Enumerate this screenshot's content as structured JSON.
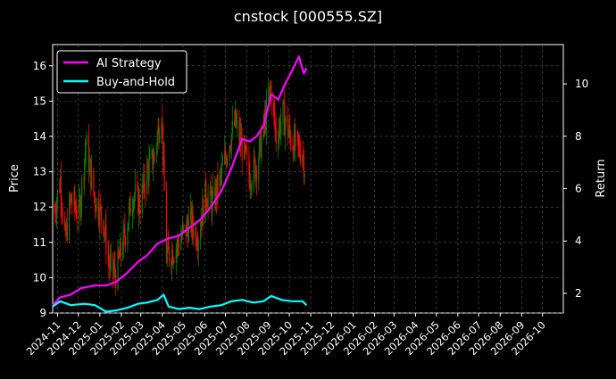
{
  "chart_data": {
    "type": "line",
    "title": "cnstock [000555.SZ]",
    "ylabel_left": "Price",
    "ylabel_right": "Return",
    "ylim_left": [
      9,
      16.6
    ],
    "ylim_right": [
      1.25,
      11.5
    ],
    "yticks_left": [
      "9",
      "10",
      "11",
      "12",
      "13",
      "14",
      "15",
      "16"
    ],
    "yticks_right": [
      "2",
      "4",
      "6",
      "8",
      "10"
    ],
    "x_range": [
      "2024-10-25",
      "2026-10-31"
    ],
    "xticks": [
      "2024-11",
      "2024-12",
      "2025-01",
      "2025-02",
      "2025-03",
      "2025-04",
      "2025-05",
      "2025-06",
      "2025-07",
      "2025-08",
      "2025-09",
      "2025-10",
      "2025-11",
      "2025-12",
      "2026-01",
      "2026-02",
      "2026-03",
      "2026-04",
      "2026-05",
      "2026-06",
      "2026-07",
      "2026-08",
      "2026-09",
      "2026-10"
    ],
    "grid": true,
    "legend_position": "top-left",
    "price_candles_approx": {
      "description_points": [
        {
          "x": "2024-10-28",
          "close": 11.9
        },
        {
          "x": "2024-11-05",
          "close": 12.8
        },
        {
          "x": "2024-11-12",
          "close": 11.0
        },
        {
          "x": "2024-11-20",
          "close": 12.2
        },
        {
          "x": "2024-12-02",
          "close": 11.8
        },
        {
          "x": "2024-12-12",
          "close": 13.8
        },
        {
          "x": "2024-12-24",
          "close": 12.3
        },
        {
          "x": "2025-01-06",
          "close": 11.6
        },
        {
          "x": "2025-01-15",
          "close": 10.3
        },
        {
          "x": "2025-01-24",
          "close": 10.1
        },
        {
          "x": "2025-02-07",
          "close": 11.3
        },
        {
          "x": "2025-02-18",
          "close": 12.4
        },
        {
          "x": "2025-02-28",
          "close": 12.1
        },
        {
          "x": "2025-03-10",
          "close": 13.0
        },
        {
          "x": "2025-03-20",
          "close": 13.4
        },
        {
          "x": "2025-03-31",
          "close": 14.8
        },
        {
          "x": "2025-04-07",
          "close": 10.6
        },
        {
          "x": "2025-04-18",
          "close": 10.8
        },
        {
          "x": "2025-04-30",
          "close": 11.2
        },
        {
          "x": "2025-05-12",
          "close": 11.6
        },
        {
          "x": "2025-05-22",
          "close": 11.2
        },
        {
          "x": "2025-06-03",
          "close": 12.4
        },
        {
          "x": "2025-06-12",
          "close": 12.1
        },
        {
          "x": "2025-06-24",
          "close": 12.8
        },
        {
          "x": "2025-07-03",
          "close": 13.6
        },
        {
          "x": "2025-07-15",
          "close": 14.4
        },
        {
          "x": "2025-07-25",
          "close": 13.7
        },
        {
          "x": "2025-08-05",
          "close": 12.9
        },
        {
          "x": "2025-08-15",
          "close": 13.2
        },
        {
          "x": "2025-08-25",
          "close": 14.2
        },
        {
          "x": "2025-09-04",
          "close": 15.4
        },
        {
          "x": "2025-09-12",
          "close": 14.0
        },
        {
          "x": "2025-09-22",
          "close": 14.6
        },
        {
          "x": "2025-09-30",
          "close": 14.1
        },
        {
          "x": "2025-10-10",
          "close": 13.7
        },
        {
          "x": "2025-10-20",
          "close": 13.6
        },
        {
          "x": "2025-10-24",
          "close": 13.0
        }
      ]
    },
    "series": [
      {
        "name": "AI Strategy",
        "color": "#ff00ff",
        "axis": "right",
        "points": [
          {
            "x": "2024-10-25",
            "y": 1.55
          },
          {
            "x": "2024-11-05",
            "y": 1.85
          },
          {
            "x": "2024-11-20",
            "y": 1.95
          },
          {
            "x": "2024-12-05",
            "y": 2.2
          },
          {
            "x": "2024-12-25",
            "y": 2.3
          },
          {
            "x": "2025-01-10",
            "y": 2.3
          },
          {
            "x": "2025-01-25",
            "y": 2.45
          },
          {
            "x": "2025-02-10",
            "y": 2.8
          },
          {
            "x": "2025-02-25",
            "y": 3.2
          },
          {
            "x": "2025-03-10",
            "y": 3.45
          },
          {
            "x": "2025-03-25",
            "y": 3.9
          },
          {
            "x": "2025-04-10",
            "y": 4.1
          },
          {
            "x": "2025-04-25",
            "y": 4.2
          },
          {
            "x": "2025-05-10",
            "y": 4.5
          },
          {
            "x": "2025-05-25",
            "y": 4.8
          },
          {
            "x": "2025-06-10",
            "y": 5.3
          },
          {
            "x": "2025-06-25",
            "y": 5.9
          },
          {
            "x": "2025-07-10",
            "y": 6.8
          },
          {
            "x": "2025-07-25",
            "y": 7.9
          },
          {
            "x": "2025-08-05",
            "y": 7.8
          },
          {
            "x": "2025-08-15",
            "y": 8.0
          },
          {
            "x": "2025-08-25",
            "y": 8.4
          },
          {
            "x": "2025-09-05",
            "y": 9.6
          },
          {
            "x": "2025-09-15",
            "y": 9.4
          },
          {
            "x": "2025-09-25",
            "y": 10.0
          },
          {
            "x": "2025-10-05",
            "y": 10.5
          },
          {
            "x": "2025-10-15",
            "y": 11.05
          },
          {
            "x": "2025-10-22",
            "y": 10.4
          },
          {
            "x": "2025-10-26",
            "y": 10.6
          }
        ]
      },
      {
        "name": "Buy-and-Hold",
        "color": "#00ffff",
        "axis": "right",
        "points": [
          {
            "x": "2024-10-25",
            "y": 1.5
          },
          {
            "x": "2024-11-05",
            "y": 1.7
          },
          {
            "x": "2024-11-20",
            "y": 1.55
          },
          {
            "x": "2024-12-10",
            "y": 1.6
          },
          {
            "x": "2024-12-25",
            "y": 1.55
          },
          {
            "x": "2025-01-10",
            "y": 1.3
          },
          {
            "x": "2025-01-25",
            "y": 1.35
          },
          {
            "x": "2025-02-10",
            "y": 1.45
          },
          {
            "x": "2025-02-25",
            "y": 1.6
          },
          {
            "x": "2025-03-10",
            "y": 1.65
          },
          {
            "x": "2025-03-25",
            "y": 1.75
          },
          {
            "x": "2025-04-03",
            "y": 1.95
          },
          {
            "x": "2025-04-10",
            "y": 1.5
          },
          {
            "x": "2025-04-25",
            "y": 1.4
          },
          {
            "x": "2025-05-10",
            "y": 1.45
          },
          {
            "x": "2025-05-25",
            "y": 1.4
          },
          {
            "x": "2025-06-10",
            "y": 1.5
          },
          {
            "x": "2025-06-25",
            "y": 1.55
          },
          {
            "x": "2025-07-10",
            "y": 1.7
          },
          {
            "x": "2025-07-25",
            "y": 1.75
          },
          {
            "x": "2025-08-10",
            "y": 1.65
          },
          {
            "x": "2025-08-25",
            "y": 1.7
          },
          {
            "x": "2025-09-05",
            "y": 1.9
          },
          {
            "x": "2025-09-20",
            "y": 1.75
          },
          {
            "x": "2025-10-05",
            "y": 1.7
          },
          {
            "x": "2025-10-20",
            "y": 1.7
          },
          {
            "x": "2025-10-26",
            "y": 1.55
          }
        ]
      }
    ],
    "colors": {
      "background": "#000000",
      "grid": "#555555",
      "up_candle": "#008000",
      "down_candle": "#ff0000",
      "text": "#ffffff"
    }
  }
}
